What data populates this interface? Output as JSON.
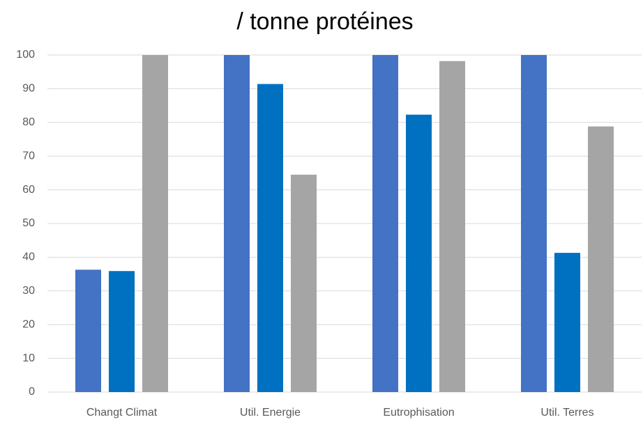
{
  "chart_data": {
    "type": "bar",
    "title": "/ tonne protéines",
    "categories": [
      "Changt Climat",
      "Util. Energie",
      "Eutrophisation",
      "Util. Terres"
    ],
    "series": [
      {
        "color": "#4472c4",
        "values": [
          36.3,
          100,
          100,
          100
        ]
      },
      {
        "color": "#0070c0",
        "values": [
          35.9,
          91.4,
          82.3,
          41.3
        ]
      },
      {
        "color": "#a5a5a5",
        "values": [
          100,
          64.5,
          98.2,
          78.8
        ]
      }
    ],
    "ylim": [
      0,
      100
    ],
    "yticks": [
      0,
      10,
      20,
      30,
      40,
      50,
      60,
      70,
      80,
      90,
      100
    ],
    "grid": true
  }
}
